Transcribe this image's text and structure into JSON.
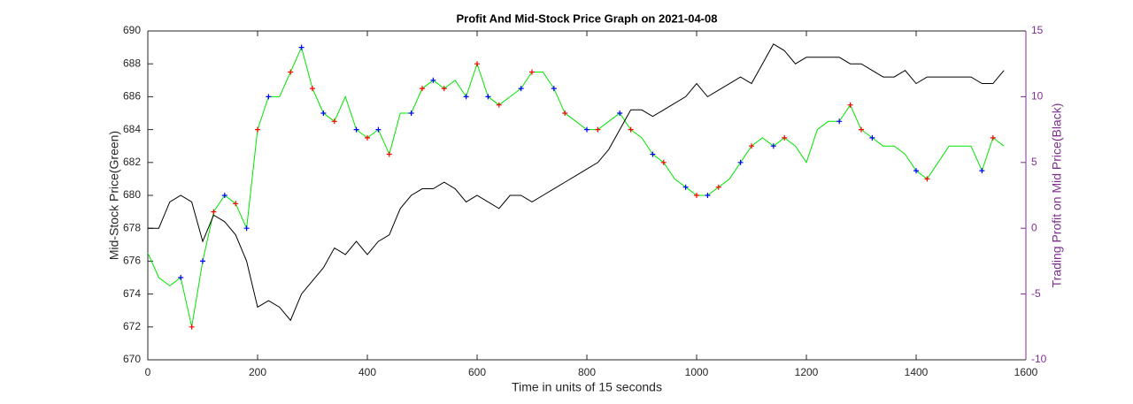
{
  "chart_data": {
    "type": "line",
    "title": "Profit And Mid-Stock Price Graph on 2021-04-08",
    "xlabel": "Time in units of 15 seconds",
    "ylabel": "Mid-Stock Price(Green)",
    "y2label": "Trading Profit on Mid Price(Black)",
    "xlim": [
      0,
      1600
    ],
    "xticks": [
      0,
      200,
      400,
      600,
      800,
      1000,
      1200,
      1400,
      1600
    ],
    "ylim": [
      670,
      690
    ],
    "yticks": [
      670,
      672,
      674,
      676,
      678,
      680,
      682,
      684,
      686,
      688,
      690
    ],
    "y2lim": [
      -10,
      15
    ],
    "y2ticks": [
      -10,
      -5,
      0,
      5,
      10,
      15
    ],
    "y2color": "#7e2f8e",
    "x": [
      0,
      20,
      40,
      60,
      80,
      100,
      120,
      140,
      160,
      180,
      200,
      220,
      240,
      260,
      280,
      300,
      320,
      340,
      360,
      380,
      400,
      420,
      440,
      460,
      480,
      500,
      520,
      540,
      560,
      580,
      600,
      620,
      640,
      660,
      680,
      700,
      720,
      740,
      760,
      780,
      800,
      820,
      840,
      860,
      880,
      900,
      920,
      940,
      960,
      980,
      1000,
      1020,
      1040,
      1060,
      1080,
      1100,
      1120,
      1140,
      1160,
      1180,
      1200,
      1220,
      1240,
      1260,
      1280,
      1300,
      1320,
      1340,
      1360,
      1380,
      1400,
      1420,
      1440,
      1460,
      1480,
      1500,
      1520,
      1540,
      1560
    ],
    "series": [
      {
        "color": "#00e600",
        "values": [
          676.5,
          675,
          674.5,
          675,
          672,
          676,
          679,
          680,
          679.5,
          678,
          684,
          686,
          686,
          687.5,
          689,
          686.5,
          685,
          684.5,
          686,
          684,
          683.5,
          684,
          682.5,
          685,
          685,
          686.5,
          687,
          686.5,
          687,
          686,
          688,
          686,
          685.5,
          686,
          686.5,
          687.5,
          687.5,
          686.5,
          685,
          684.5,
          684,
          684,
          684.5,
          685,
          684,
          683.5,
          682.5,
          682,
          681,
          680.5,
          680,
          680,
          680.5,
          681,
          682,
          683,
          683.5,
          683,
          683.5,
          683,
          682,
          684,
          684.5,
          684.5,
          685.5,
          684,
          683.5,
          683,
          683,
          682.5,
          681.5,
          681,
          682,
          683,
          683,
          683,
          681.5,
          683.5,
          683
        ]
      },
      {
        "color": "#000000",
        "axis": "y2",
        "values": [
          0,
          0,
          2,
          2.5,
          2,
          -1,
          1,
          0.5,
          -0.5,
          -2.5,
          -6,
          -5.5,
          -6,
          -7,
          -5,
          -4,
          -3,
          -1.5,
          -2,
          -1,
          -2,
          -1,
          -0.5,
          1.5,
          2.5,
          3,
          3,
          3.5,
          3,
          2,
          2.5,
          2,
          1.5,
          2.5,
          2.5,
          2,
          2.5,
          3,
          3.5,
          4,
          4.5,
          5,
          6,
          7.5,
          9,
          9,
          8.5,
          9,
          9.5,
          10,
          11,
          10,
          10.5,
          11,
          11.5,
          11,
          12.5,
          14,
          13.5,
          12.5,
          13,
          13,
          13,
          13,
          12.5,
          12.5,
          12,
          11.5,
          11.5,
          12,
          11,
          11.5,
          11.5,
          11.5,
          11.5,
          11.5,
          11,
          11,
          12
        ]
      }
    ],
    "markers": [
      {
        "color": "#ff0000",
        "x": [
          80,
          120,
          160,
          200,
          260,
          300,
          340,
          400,
          440,
          500,
          540,
          600,
          640,
          700,
          760,
          820,
          880,
          940,
          1000,
          1040,
          1100,
          1160,
          1280,
          1300,
          1420,
          1540
        ],
        "values": [
          672,
          679,
          679.5,
          684,
          687.5,
          686.5,
          684.5,
          683.5,
          682.5,
          686.5,
          686.5,
          688,
          685.5,
          687.5,
          685,
          684,
          684,
          682,
          680,
          680.5,
          683,
          683.5,
          685.5,
          684,
          681,
          683.5
        ]
      },
      {
        "color": "#0000ff",
        "x": [
          60,
          100,
          140,
          180,
          220,
          280,
          320,
          380,
          420,
          480,
          520,
          580,
          620,
          680,
          740,
          800,
          860,
          920,
          980,
          1020,
          1080,
          1140,
          1260,
          1320,
          1400,
          1520
        ],
        "values": [
          675,
          676,
          680,
          678,
          686,
          689,
          685,
          684,
          684,
          685,
          687,
          686,
          686,
          686.5,
          686.5,
          684,
          685,
          682.5,
          680.5,
          680,
          682,
          683,
          684.5,
          683.5,
          681.5,
          681.5
        ]
      }
    ]
  }
}
